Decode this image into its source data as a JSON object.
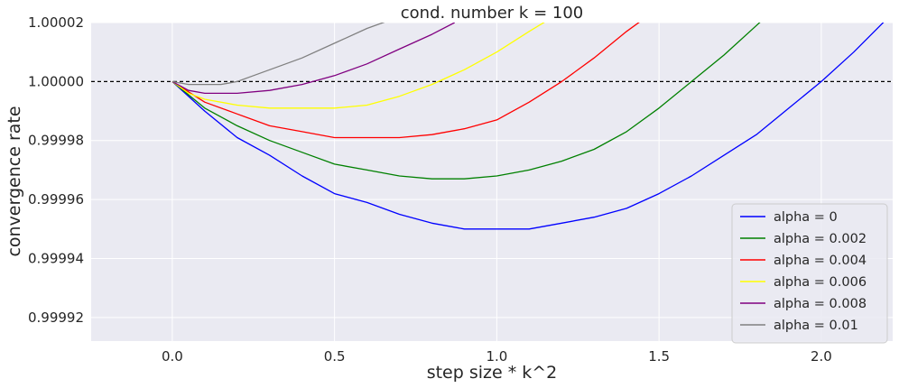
{
  "chart_data": {
    "type": "line",
    "title": "cond. number k = 100",
    "xlabel": "step size * k^2",
    "ylabel": "convergence rate",
    "xlim": [
      -0.25,
      2.22
    ],
    "ylim": [
      0.999912,
      1.00002
    ],
    "xticks": [
      0.0,
      0.5,
      1.0,
      1.5,
      2.0
    ],
    "xtick_labels": [
      "0.0",
      "0.5",
      "1.0",
      "1.5",
      "2.0"
    ],
    "yticks": [
      0.99992,
      0.99994,
      0.99996,
      0.99998,
      1.0,
      1.00002
    ],
    "ytick_labels": [
      "0.99992",
      "0.99994",
      "0.99996",
      "0.99998",
      "1.00000",
      "1.00002"
    ],
    "reference_line": {
      "y": 1.0,
      "style": "dashed",
      "color": "#000000"
    },
    "grid": true,
    "background": "#eaeaf2",
    "legend_position": "lower right",
    "series": [
      {
        "name": "alpha = 0",
        "color": "#0000ff",
        "x": [
          0.0,
          0.1,
          0.2,
          0.3,
          0.4,
          0.5,
          0.6,
          0.7,
          0.8,
          0.9,
          1.0,
          1.1,
          1.2,
          1.3,
          1.4,
          1.5,
          1.6,
          1.7,
          1.8,
          1.9,
          2.0,
          2.1,
          2.2
        ],
        "y": [
          1.0,
          0.99999,
          0.999981,
          0.999975,
          0.999968,
          0.999962,
          0.999959,
          0.999955,
          0.999952,
          0.99995,
          0.99995,
          0.99995,
          0.999952,
          0.999954,
          0.999957,
          0.999962,
          0.999968,
          0.999975,
          0.999982,
          0.999991,
          1.0,
          1.00001,
          1.000021
        ]
      },
      {
        "name": "alpha = 0.002",
        "color": "#008000",
        "x": [
          0.0,
          0.1,
          0.2,
          0.3,
          0.4,
          0.5,
          0.6,
          0.7,
          0.8,
          0.9,
          1.0,
          1.1,
          1.2,
          1.3,
          1.4,
          1.5,
          1.6,
          1.7,
          1.8,
          1.82
        ],
        "y": [
          1.0,
          0.999991,
          0.999985,
          0.99998,
          0.999976,
          0.999972,
          0.99997,
          0.999968,
          0.999967,
          0.999967,
          0.999968,
          0.99997,
          0.999973,
          0.999977,
          0.999983,
          0.999991,
          1.0,
          1.000009,
          1.000019,
          1.000021
        ]
      },
      {
        "name": "alpha = 0.004",
        "color": "#ff0000",
        "x": [
          0.0,
          0.1,
          0.2,
          0.3,
          0.4,
          0.5,
          0.6,
          0.7,
          0.8,
          0.9,
          1.0,
          1.1,
          1.2,
          1.3,
          1.4,
          1.45
        ],
        "y": [
          1.0,
          0.999993,
          0.999989,
          0.999985,
          0.999983,
          0.999981,
          0.999981,
          0.999981,
          0.999982,
          0.999984,
          0.999987,
          0.999993,
          1.0,
          1.000008,
          1.000017,
          1.000021
        ]
      },
      {
        "name": "alpha = 0.006",
        "color": "#ffff00",
        "x": [
          0.0,
          0.05,
          0.1,
          0.2,
          0.3,
          0.4,
          0.5,
          0.6,
          0.7,
          0.8,
          0.9,
          1.0,
          1.1,
          1.16
        ],
        "y": [
          1.0,
          0.999996,
          0.999994,
          0.999992,
          0.999991,
          0.999991,
          0.999991,
          0.999992,
          0.999995,
          0.999999,
          1.000004,
          1.00001,
          1.000017,
          1.000021
        ]
      },
      {
        "name": "alpha = 0.008",
        "color": "#800080",
        "x": [
          0.0,
          0.05,
          0.1,
          0.15,
          0.2,
          0.3,
          0.4,
          0.5,
          0.6,
          0.7,
          0.8,
          0.87
        ],
        "y": [
          1.0,
          0.999997,
          0.999996,
          0.999996,
          0.999996,
          0.999997,
          0.999999,
          1.000002,
          1.000006,
          1.000011,
          1.000016,
          1.00002
        ]
      },
      {
        "name": "alpha = 0.01",
        "color": "#808080",
        "x": [
          0.0,
          0.05,
          0.1,
          0.15,
          0.2,
          0.25,
          0.3,
          0.4,
          0.5,
          0.6,
          0.7
        ],
        "y": [
          1.0,
          0.999999,
          0.999999,
          0.999999,
          1.0,
          1.000002,
          1.000004,
          1.000008,
          1.000013,
          1.000018,
          1.000022
        ]
      }
    ]
  }
}
